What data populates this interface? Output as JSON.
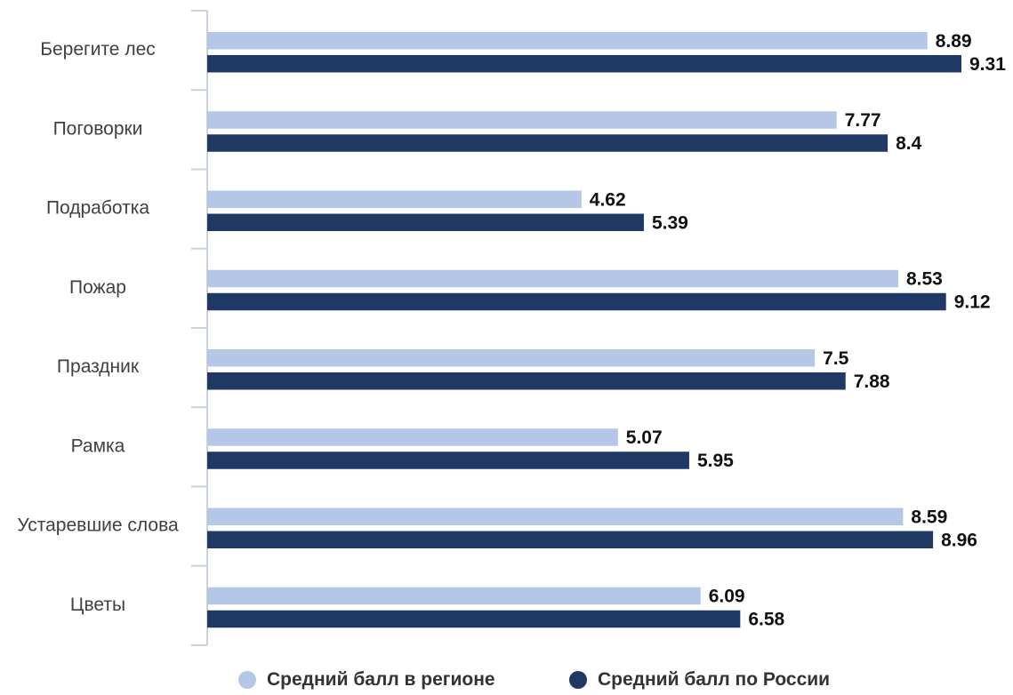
{
  "chart_data": {
    "type": "bar",
    "orientation": "horizontal",
    "categories": [
      "Берегите лес",
      "Поговорки",
      "Подработка",
      "Пожар",
      "Праздник",
      "Рамка",
      "Устаревшие слова",
      "Цветы"
    ],
    "series": [
      {
        "name": "Средний балл в регионе",
        "color": "#b4c7e7",
        "values": [
          8.89,
          7.77,
          4.62,
          8.53,
          7.5,
          5.07,
          8.59,
          6.09
        ]
      },
      {
        "name": "Средний балл по России",
        "color": "#1f3864",
        "values": [
          9.31,
          8.4,
          5.39,
          9.12,
          7.88,
          5.95,
          8.96,
          6.58
        ]
      }
    ],
    "value_labels": [
      [
        "8.89",
        "7.77",
        "4.62",
        "8.53",
        "7.5",
        "5.07",
        "8.59",
        "6.09"
      ],
      [
        "9.31",
        "8.4",
        "5.39",
        "9.12",
        "7.88",
        "5.95",
        "8.96",
        "6.58"
      ]
    ],
    "xlim": [
      0,
      9.31
    ],
    "grid": false,
    "legend": "bottom",
    "axis_color": "#c9d3e0"
  }
}
